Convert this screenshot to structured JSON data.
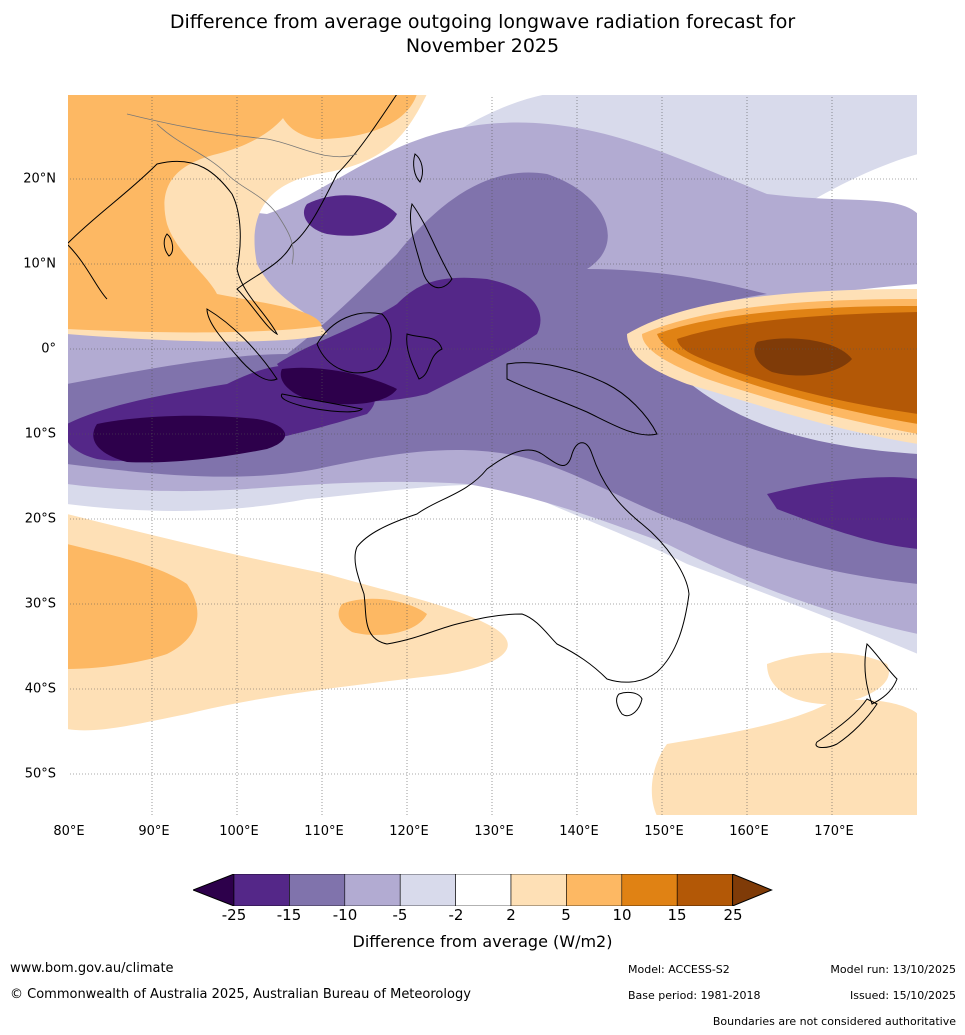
{
  "header": {
    "title_line1": "Difference from average outgoing longwave radiation forecast for",
    "title_line2": "November 2025"
  },
  "map": {
    "lat_labels": [
      "20°N",
      "10°N",
      "0°",
      "10°S",
      "20°S",
      "30°S",
      "40°S",
      "50°S"
    ],
    "lat_values": [
      20,
      10,
      0,
      -10,
      -20,
      -30,
      -40,
      -50
    ],
    "lon_labels": [
      "80°E",
      "90°E",
      "100°E",
      "110°E",
      "120°E",
      "130°E",
      "140°E",
      "150°E",
      "160°E",
      "170°E"
    ],
    "lon_values": [
      80,
      90,
      100,
      110,
      120,
      130,
      140,
      150,
      160,
      170
    ],
    "extent": {
      "lon_min": 80,
      "lon_max": 180,
      "lat_min": -55,
      "lat_max": 30
    }
  },
  "colorbar": {
    "ticks": [
      "-25",
      "-15",
      "-10",
      "-5",
      "-2",
      "2",
      "5",
      "10",
      "15",
      "25"
    ],
    "colors": [
      "#2d004b",
      "#542788",
      "#8073ac",
      "#b2abd2",
      "#d8daeb",
      "#ffffff",
      "#fee0b6",
      "#fdb863",
      "#e08214",
      "#b35806",
      "#7f3b08"
    ],
    "label": "Difference from average (W/m2)"
  },
  "footer": {
    "website": "www.bom.gov.au/climate",
    "copyright": "© Commonwealth of Australia 2025, Australian Bureau of Meteorology",
    "model": "Model: ACCESS-S2",
    "base_period": "Base period: 1981-2018",
    "model_run": "Model run: 13/10/2025",
    "issued": "Issued: 15/10/2025",
    "disclaimer": "Boundaries are not considered authoritative"
  }
}
